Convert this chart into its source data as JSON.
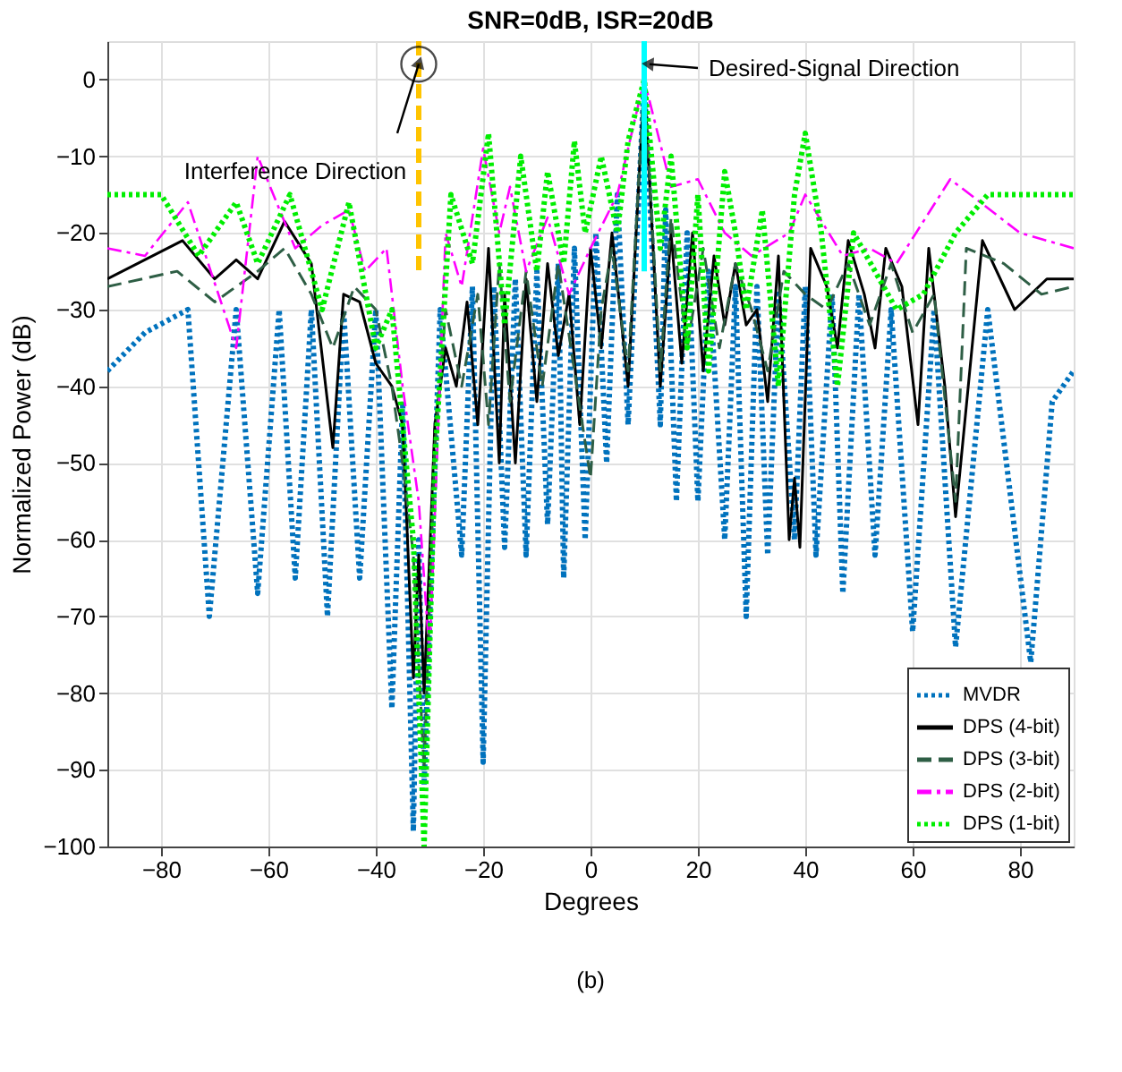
{
  "chart_data": {
    "type": "line",
    "title": "SNR=0dB, ISR=20dB",
    "xlabel": "Degrees",
    "ylabel": "Normalized Power (dB)",
    "xlim": [
      -90,
      90
    ],
    "xticks": [
      -80,
      -60,
      -40,
      -20,
      0,
      20,
      40,
      60,
      80
    ],
    "ylim": [
      -100,
      5
    ],
    "yticks": [
      -100,
      -90,
      -80,
      -70,
      -60,
      -50,
      -40,
      -30,
      -20,
      -10,
      0
    ],
    "grid": true,
    "legend": "bottom right",
    "series": [
      {
        "name": "MVDR",
        "color": "#0072bd",
        "line_style": "dotted",
        "x": [
          -90,
          -83,
          -75,
          -71,
          -66,
          -62,
          -58,
          -55,
          -52,
          -49,
          -46,
          -43,
          -40,
          -37,
          -35,
          -33,
          -32,
          -31,
          -28,
          -24,
          -22,
          -20,
          -18,
          -16,
          -14,
          -12,
          -10,
          -8,
          -6,
          -5,
          -3,
          -1,
          1,
          3,
          5,
          7,
          10,
          13,
          14,
          16,
          18,
          20,
          22,
          25,
          27,
          29,
          31,
          33,
          35,
          38,
          40,
          42,
          45,
          47,
          50,
          53,
          56,
          60,
          64,
          68,
          74,
          82,
          86,
          90
        ],
        "values": [
          -38,
          -33,
          -30,
          -70,
          -30,
          -67,
          -30,
          -65,
          -30,
          -70,
          -30,
          -65,
          -30,
          -82,
          -42,
          -98,
          -60,
          -92,
          -30,
          -62,
          -27,
          -89,
          -27,
          -61,
          -26,
          -62,
          -25,
          -58,
          -24,
          -65,
          -22,
          -60,
          -20,
          -50,
          -15,
          -45,
          0,
          -45,
          -17,
          -55,
          -20,
          -55,
          -25,
          -60,
          -27,
          -70,
          -27,
          -62,
          -28,
          -60,
          -27,
          -62,
          -28,
          -67,
          -28,
          -62,
          -30,
          -72,
          -30,
          -74,
          -30,
          -76,
          -42,
          -38
        ]
      },
      {
        "name": "DPS (4-bit)",
        "color": "#000000",
        "line_style": "solid",
        "x": [
          -90,
          -76,
          -70,
          -66,
          -62,
          -57,
          -52,
          -48,
          -46,
          -43,
          -40,
          -37,
          -35,
          -33,
          -32,
          -31,
          -29,
          -27,
          -25,
          -23,
          -21,
          -19,
          -17,
          -16,
          -14,
          -12,
          -10,
          -8,
          -6,
          -4,
          -2,
          0,
          2,
          4,
          7,
          10,
          13,
          15,
          17,
          19,
          21,
          23,
          25,
          27,
          29,
          31,
          33,
          35,
          37,
          38,
          39,
          41,
          44,
          46,
          48,
          51,
          53,
          55,
          58,
          61,
          63,
          66,
          68,
          73,
          79,
          85,
          90
        ],
        "values": [
          -26,
          -21,
          -26,
          -23.5,
          -26,
          -18.5,
          -24,
          -48,
          -28,
          -29,
          -37,
          -40,
          -45,
          -78,
          -62,
          -80,
          -45,
          -35,
          -40,
          -29,
          -45,
          -22,
          -50,
          -28,
          -50,
          -26,
          -42,
          -24,
          -36,
          -28,
          -45,
          -22,
          -35,
          -20,
          -40,
          0,
          -40,
          -20,
          -37,
          -20,
          -38,
          -23,
          -32,
          -24,
          -32,
          -30,
          -42,
          -23,
          -60,
          -52,
          -61,
          -22,
          -27,
          -35,
          -21,
          -28,
          -35,
          -22,
          -27,
          -45,
          -22,
          -40,
          -57,
          -21,
          -30,
          -26,
          -26
        ]
      },
      {
        "name": "DPS (3-bit)",
        "color": "#2e5e45",
        "line_style": "dashed",
        "x": [
          -90,
          -77,
          -70,
          -62,
          -57,
          -52,
          -48,
          -44,
          -40,
          -37,
          -35,
          -33,
          -31,
          -29,
          -27,
          -24,
          -21,
          -19,
          -17,
          -15,
          -12,
          -9,
          -6,
          -3,
          0,
          2,
          4,
          7,
          10,
          13,
          15,
          18,
          21,
          24,
          27,
          30,
          33,
          36,
          40,
          44,
          48,
          52,
          56,
          60,
          64,
          68,
          70,
          77,
          84,
          90
        ],
        "values": [
          -27,
          -25,
          -29,
          -25,
          -22,
          -28,
          -35,
          -27,
          -30,
          -40,
          -50,
          -62,
          -90,
          -48,
          -30,
          -40,
          -28,
          -45,
          -24,
          -42,
          -25,
          -40,
          -24,
          -38,
          -52,
          -30,
          -22,
          -38,
          0,
          -38,
          -18,
          -35,
          -22,
          -35,
          -24,
          -30,
          -38,
          -25,
          -28,
          -30,
          -24,
          -32,
          -24,
          -33,
          -28,
          -55,
          -22,
          -24,
          -28,
          -27
        ]
      },
      {
        "name": "DPS (2-bit)",
        "color": "#ff00ff",
        "line_style": "dashdot",
        "x": [
          -90,
          -83,
          -75,
          -66,
          -62,
          -55,
          -50,
          -45,
          -42,
          -38,
          -35,
          -32,
          -30,
          -27,
          -24,
          -20,
          -17,
          -15,
          -12,
          -8,
          -4,
          0,
          5,
          10,
          15,
          20,
          25,
          30,
          37,
          40,
          47,
          52,
          57,
          67,
          80,
          90
        ],
        "values": [
          -22,
          -23,
          -16,
          -35,
          -10,
          -22,
          -19,
          -17,
          -25,
          -22,
          -40,
          -55,
          -75,
          -20,
          -27,
          -9,
          -20,
          -14,
          -25,
          -18,
          -28,
          -22,
          -15,
          0,
          -14,
          -13,
          -20,
          -23,
          -20,
          -15,
          -23,
          -22,
          -24,
          -13,
          -20,
          -22
        ]
      },
      {
        "name": "DPS (1-bit)",
        "color": "#00ee00",
        "line_style": "dotted",
        "x": [
          -90,
          -80,
          -73,
          -66,
          -62,
          -56,
          -50,
          -45,
          -40,
          -37,
          -33,
          -31,
          -29,
          -26,
          -22,
          -19,
          -16,
          -13,
          -10,
          -8,
          -5,
          -3,
          -1,
          2,
          5,
          7,
          10,
          13,
          15,
          18,
          20,
          22,
          25,
          27,
          29,
          32,
          35,
          38,
          40,
          43,
          46,
          49,
          53,
          57,
          62,
          68,
          74,
          90
        ],
        "values": [
          -15,
          -15,
          -23,
          -16,
          -24,
          -15,
          -30,
          -16,
          -35,
          -30,
          -60,
          -100,
          -50,
          -15,
          -24,
          -7,
          -32,
          -10,
          -25,
          -12,
          -24,
          -8,
          -20,
          -10,
          -20,
          -8,
          0,
          -22,
          -10,
          -35,
          -15,
          -38,
          -12,
          -20,
          -30,
          -17,
          -40,
          -15,
          -7,
          -20,
          -40,
          -20,
          -25,
          -30,
          -28,
          -20,
          -15,
          -15
        ]
      },
      {
        "color": "#ffc400",
        "line_style": "dashed",
        "x": [
          -32,
          -32
        ],
        "values": [
          5,
          -25
        ]
      },
      {
        "color": "#00ffff",
        "line_style": "solid",
        "x": [
          10,
          10
        ],
        "values": [
          5,
          -25
        ]
      }
    ],
    "annotations": [
      {
        "text": "Interference Direction",
        "x": -32,
        "y": 2
      },
      {
        "text": "Desired-Signal Direction",
        "x": 11,
        "y": 2
      },
      "(b)"
    ]
  }
}
